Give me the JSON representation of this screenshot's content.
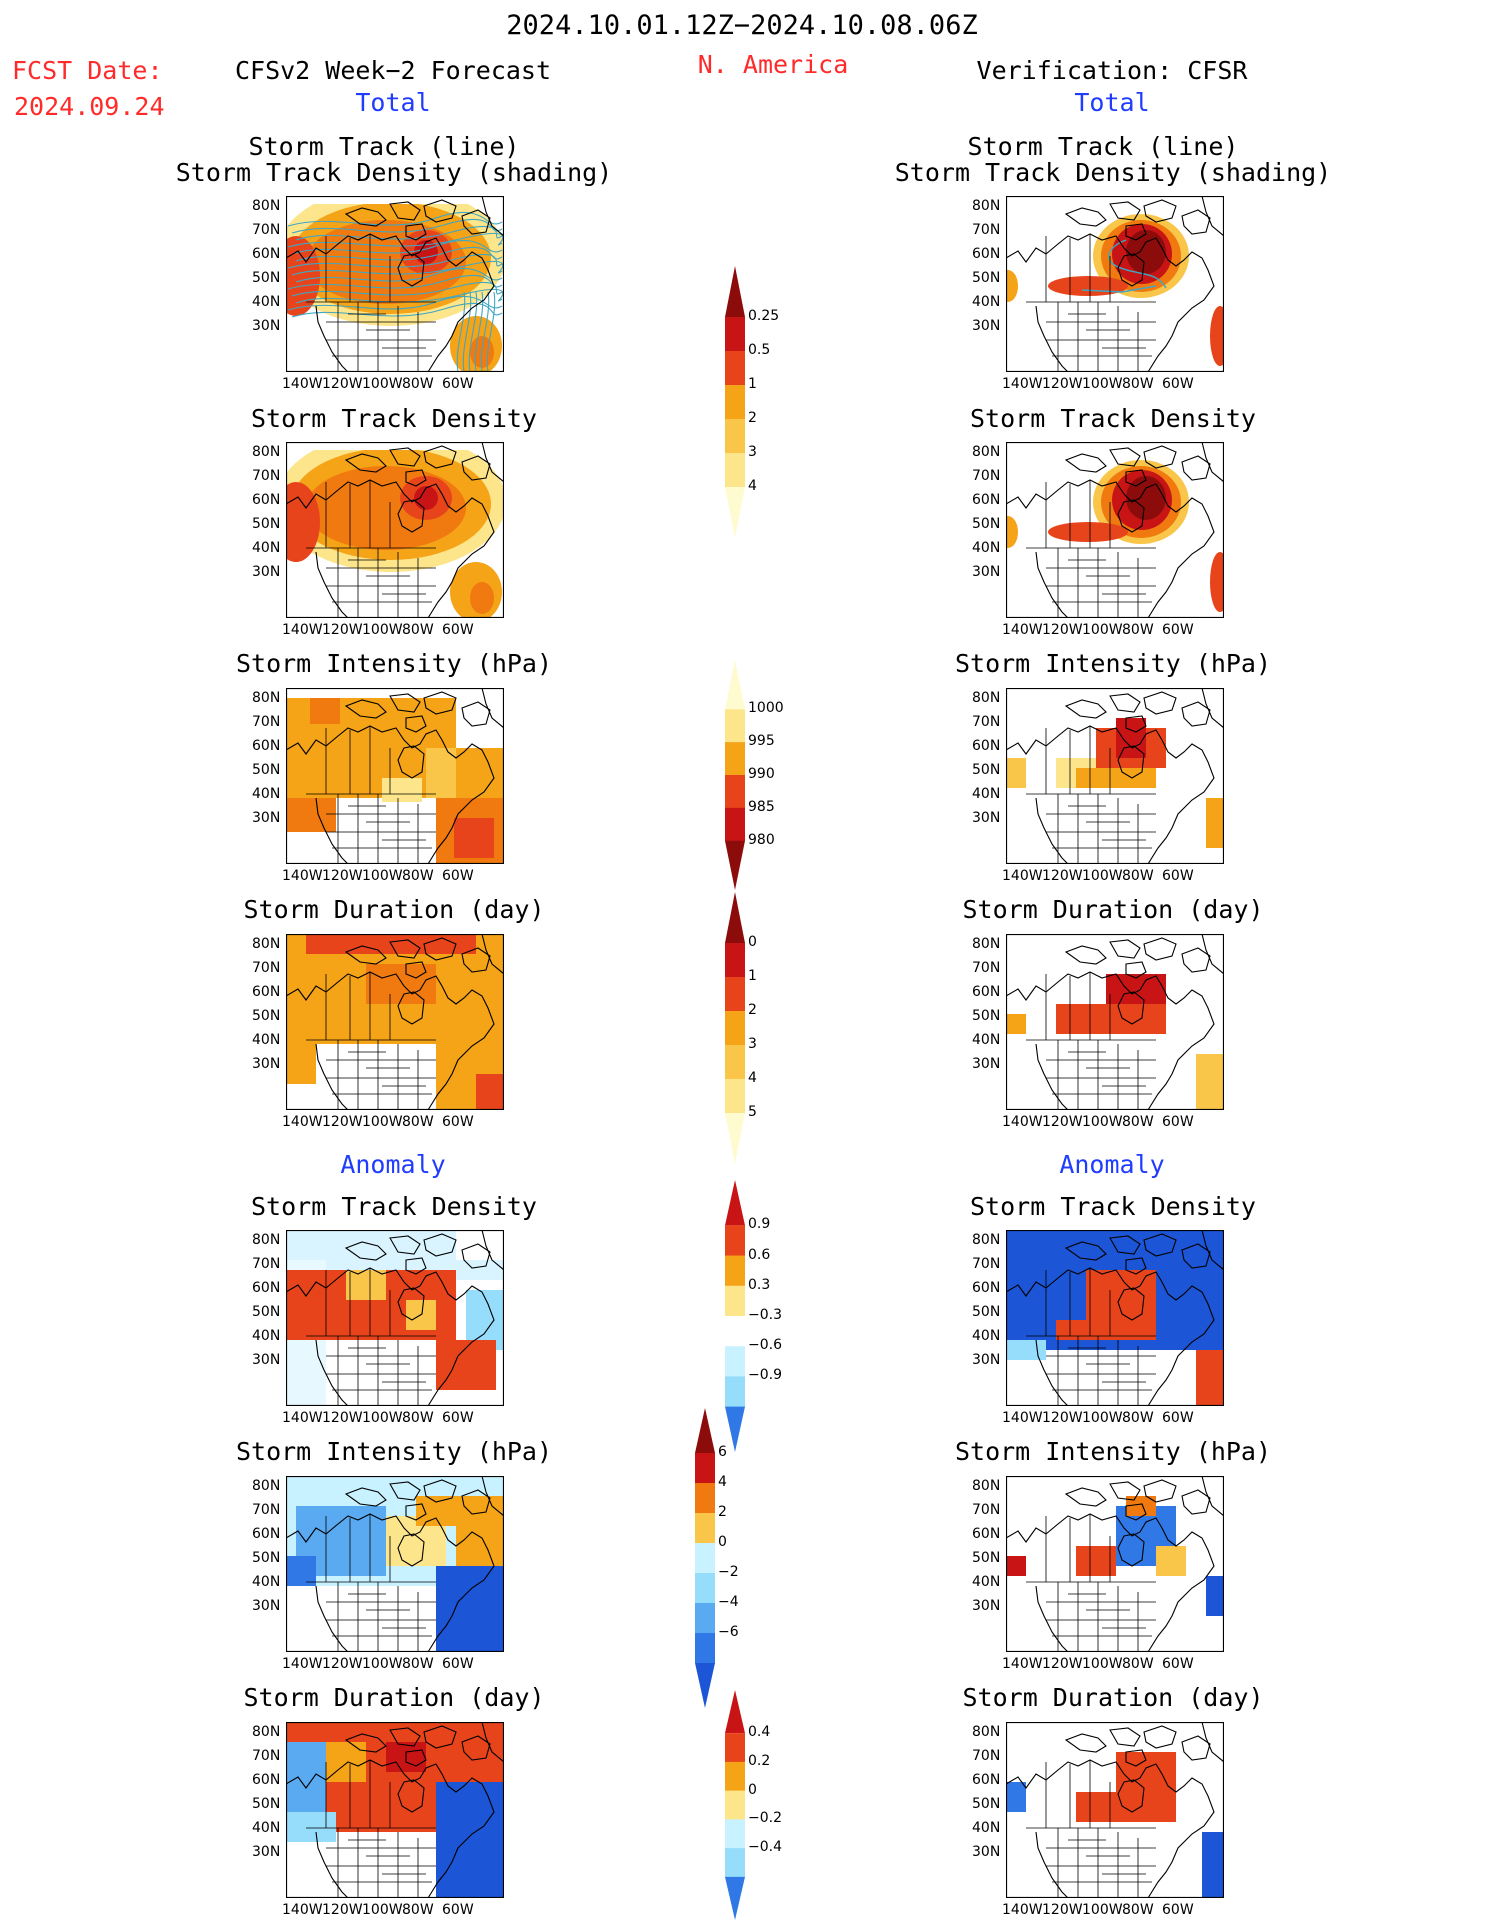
{
  "header": {
    "date_range": "2024.10.01.12Z−2024.10.08.06Z",
    "fcst_label": "FCST Date:",
    "fcst_date": "2024.09.24",
    "forecast_title": "CFSv2 Week−2 Forecast",
    "region": "N. America",
    "verification_title": "Verification: CFSR"
  },
  "sections": {
    "total": "Total",
    "anomaly": "Anomaly"
  },
  "panel_titles": {
    "track_line": "Storm Track (line)",
    "track_shading": "Storm Track Density (shading)",
    "density": "Storm Track Density",
    "intensity": "Storm Intensity (hPa)",
    "duration": "Storm Duration (day)"
  },
  "axes": {
    "lat_ticks": [
      "80N",
      "70N",
      "60N",
      "50N",
      "40N",
      "30N"
    ],
    "lon_ticks": [
      "140W",
      "120W",
      "100W",
      "80W",
      "60W"
    ]
  },
  "colorbars": {
    "density_total": [
      "0.25",
      "0.5",
      "1",
      "2",
      "3",
      "4"
    ],
    "intensity_total": [
      "1000",
      "995",
      "990",
      "985",
      "980"
    ],
    "duration_total": [
      "0",
      "1",
      "2",
      "3",
      "4",
      "5"
    ],
    "density_anom": [
      "0.9",
      "0.6",
      "0.3",
      "−0.3",
      "−0.6",
      "−0.9"
    ],
    "intensity_anom": [
      "6",
      "4",
      "2",
      "0",
      "−2",
      "−4",
      "−6"
    ],
    "duration_anom": [
      "0.4",
      "0.2",
      "0",
      "−0.2",
      "−0.4"
    ]
  },
  "colors": {
    "warm": [
      "#fff7a8",
      "#fde58b",
      "#f9c64a",
      "#f5a317",
      "#f07a0f",
      "#e8441c",
      "#c81414",
      "#8c0c0c"
    ],
    "cool": [
      "#c8f2ff",
      "#96dcfb",
      "#5aaaf2",
      "#2f78e6",
      "#1c55d6"
    ],
    "track_line": "#3fa7c4",
    "title_red": "#ff2b2b",
    "title_blue": "#1f3cff"
  }
}
